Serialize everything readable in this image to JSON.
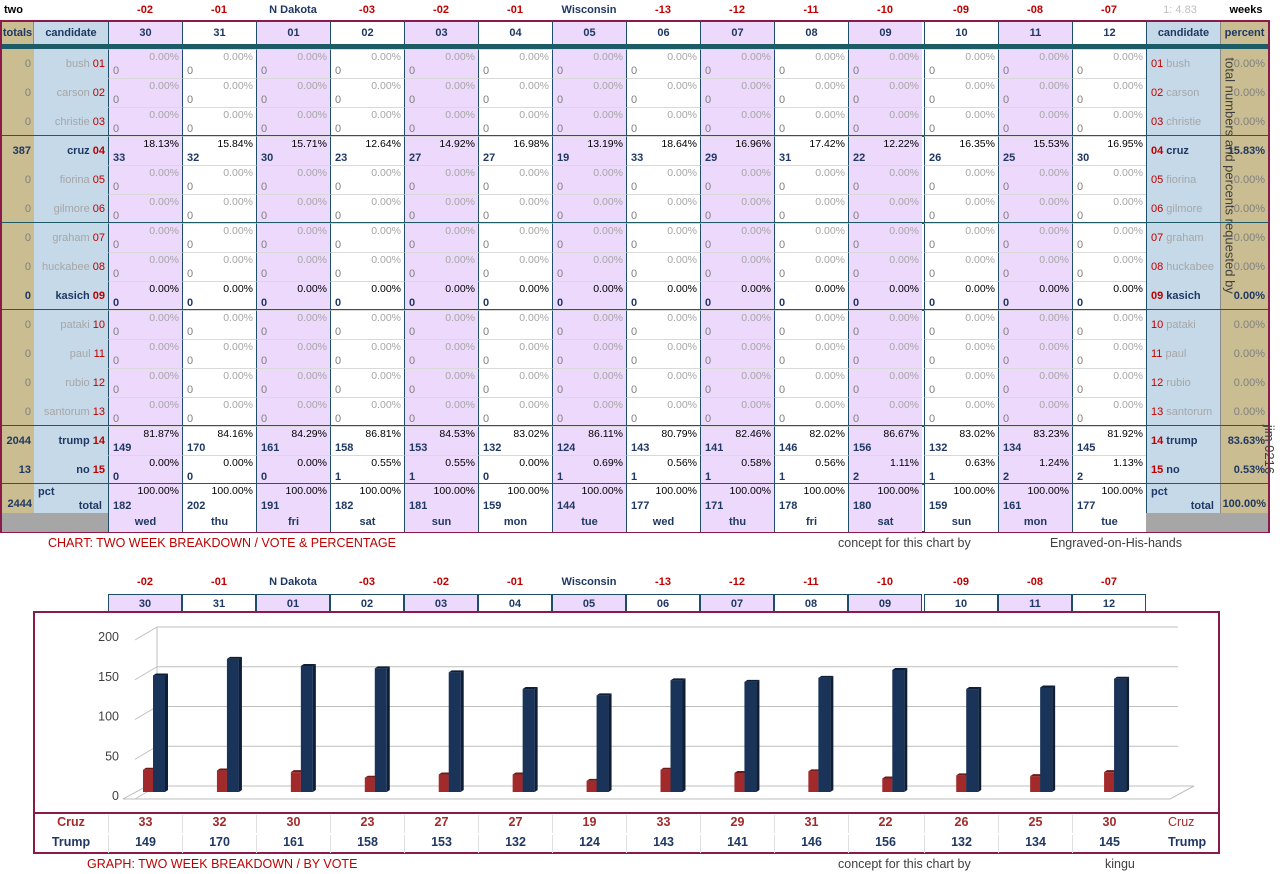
{
  "header": {
    "top_left": "two",
    "top_right": "weeks",
    "ratio_label": "1:  4.83",
    "markers": [
      "-02",
      "-01",
      "N Dakota",
      "-03",
      "-02",
      "-01",
      "Wisconsin",
      "-13",
      "-12",
      "-11",
      "-10",
      "-09",
      "-08",
      "-07"
    ],
    "dates": [
      "30",
      "31",
      "01",
      "02",
      "03",
      "04",
      "05",
      "06",
      "07",
      "08",
      "09",
      "10",
      "11",
      "12"
    ],
    "days": [
      "wed",
      "thu",
      "fri",
      "sat",
      "sun",
      "mon",
      "tue",
      "wed",
      "thu",
      "fri",
      "sat",
      "sun",
      "mon",
      "tue"
    ],
    "totals_label": "totals",
    "candidate_label": "candidate",
    "candidate_label_right": "candidate",
    "percent_label": "percent",
    "pct_label": "pct",
    "total_label": "total",
    "total_label_right": "total"
  },
  "candidates": [
    {
      "num": "01",
      "name": "bush",
      "total": "0",
      "percent": "0.00%",
      "active": false
    },
    {
      "num": "02",
      "name": "carson",
      "total": "0",
      "percent": "0.00%",
      "active": false
    },
    {
      "num": "03",
      "name": "christie",
      "total": "0",
      "percent": "0.00%",
      "active": false
    },
    {
      "num": "04",
      "name": "cruz",
      "total": "387",
      "percent": "15.83%",
      "active": true
    },
    {
      "num": "05",
      "name": "fiorina",
      "total": "0",
      "percent": "0.00%",
      "active": false
    },
    {
      "num": "06",
      "name": "gilmore",
      "total": "0",
      "percent": "0.00%",
      "active": false
    },
    {
      "num": "07",
      "name": "graham",
      "total": "0",
      "percent": "0.00%",
      "active": false
    },
    {
      "num": "08",
      "name": "huckabee",
      "total": "0",
      "percent": "0.00%",
      "active": false
    },
    {
      "num": "09",
      "name": "kasich",
      "total": "0",
      "percent": "0.00%",
      "active": true
    },
    {
      "num": "10",
      "name": "pataki",
      "total": "0",
      "percent": "0.00%",
      "active": false
    },
    {
      "num": "11",
      "name": "paul",
      "total": "0",
      "percent": "0.00%",
      "active": false
    },
    {
      "num": "12",
      "name": "rubio",
      "total": "0",
      "percent": "0.00%",
      "active": false
    },
    {
      "num": "13",
      "name": "santorum",
      "total": "0",
      "percent": "0.00%",
      "active": false
    },
    {
      "num": "14",
      "name": "trump",
      "total": "2044",
      "percent": "83.63%",
      "active": true
    },
    {
      "num": "15",
      "name": "no",
      "total": "13",
      "percent": "0.53%",
      "active": true
    }
  ],
  "cells": {
    "cruz_votes": [
      "33",
      "32",
      "30",
      "23",
      "27",
      "27",
      "19",
      "33",
      "29",
      "31",
      "22",
      "26",
      "25",
      "30"
    ],
    "cruz_pct": [
      "18.13%",
      "15.84%",
      "15.71%",
      "12.64%",
      "14.92%",
      "16.98%",
      "13.19%",
      "18.64%",
      "16.96%",
      "17.42%",
      "12.22%",
      "16.35%",
      "15.53%",
      "16.95%"
    ],
    "trump_votes": [
      "149",
      "170",
      "161",
      "158",
      "153",
      "132",
      "124",
      "143",
      "141",
      "146",
      "156",
      "132",
      "134",
      "145"
    ],
    "trump_pct": [
      "81.87%",
      "84.16%",
      "84.29%",
      "86.81%",
      "84.53%",
      "83.02%",
      "86.11%",
      "80.79%",
      "82.46%",
      "82.02%",
      "86.67%",
      "83.02%",
      "83.23%",
      "81.92%"
    ],
    "no_votes": [
      "0",
      "0",
      "0",
      "1",
      "1",
      "0",
      "1",
      "1",
      "1",
      "1",
      "2",
      "1",
      "2",
      "2"
    ],
    "no_pct": [
      "0.00%",
      "0.00%",
      "0.00%",
      "0.55%",
      "0.55%",
      "0.00%",
      "0.69%",
      "0.56%",
      "0.58%",
      "0.56%",
      "1.11%",
      "0.63%",
      "1.24%",
      "1.13%"
    ],
    "total_votes": [
      "182",
      "202",
      "191",
      "182",
      "181",
      "159",
      "144",
      "177",
      "171",
      "178",
      "180",
      "159",
      "161",
      "177"
    ],
    "total_pct": "100.00%",
    "zero_vote": "0",
    "zero_pct": "0.00%"
  },
  "grand": {
    "total": "2444",
    "percent": "100.00%"
  },
  "footer1": {
    "title": "CHART:  TWO WEEK BREAKDOWN / VOTE & PERCENTAGE",
    "concept": "concept for this chart by",
    "author": "Engraved-on-His-hands"
  },
  "side_text": "total numbers and percents requested by",
  "side_text2": "jim 0216",
  "footer2": {
    "title": "GRAPH:  TWO WEEK BREAKDOWN / BY VOTE",
    "concept": "concept for this chart by",
    "author": "kingu"
  },
  "colors": {
    "cruz": "#a32a2a",
    "trump": "#1a3359",
    "frame": "#8b1a4a",
    "lavender": "#ecd9fb",
    "blue": "#c5d9e8",
    "tan": "#c9bd91"
  },
  "chart_data": {
    "type": "bar",
    "categories": [
      "30",
      "31",
      "01",
      "02",
      "03",
      "04",
      "05",
      "06",
      "07",
      "08",
      "09",
      "10",
      "11",
      "12"
    ],
    "series": [
      {
        "name": "Cruz",
        "values": [
          33,
          32,
          30,
          23,
          27,
          27,
          19,
          33,
          29,
          31,
          22,
          26,
          25,
          30
        ]
      },
      {
        "name": "Trump",
        "values": [
          149,
          170,
          161,
          158,
          153,
          132,
          124,
          143,
          141,
          146,
          156,
          132,
          134,
          145
        ]
      }
    ],
    "yticks": [
      "0",
      "50",
      "100",
      "150",
      "200"
    ],
    "ylim": [
      0,
      200
    ],
    "grid": true
  }
}
